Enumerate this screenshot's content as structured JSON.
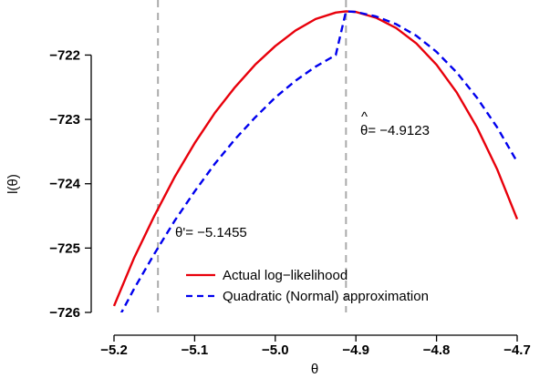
{
  "chart_data": {
    "type": "line",
    "title": "",
    "xlabel": "θ",
    "ylabel": "l(θ)",
    "xlim": [
      -5.2,
      -4.7
    ],
    "ylim": [
      -726,
      -721.3
    ],
    "xticks": [
      {
        "value": -5.2,
        "label": "−5.2"
      },
      {
        "value": -5.1,
        "label": "−5.1"
      },
      {
        "value": -5.0,
        "label": "−5.0"
      },
      {
        "value": -4.9,
        "label": "−4.9"
      },
      {
        "value": -4.8,
        "label": "−4.8"
      },
      {
        "value": -4.7,
        "label": "−4.7"
      }
    ],
    "yticks": [
      {
        "value": -726,
        "label": "−726"
      },
      {
        "value": -725,
        "label": "−725"
      },
      {
        "value": -724,
        "label": "−724"
      },
      {
        "value": -723,
        "label": "−723"
      },
      {
        "value": -722,
        "label": "−722"
      }
    ],
    "series": [
      {
        "name": "Actual log−likelihood",
        "color": "#e8000b",
        "style": "solid",
        "x": [
          -5.2,
          -5.175,
          -5.15,
          -5.125,
          -5.1,
          -5.075,
          -5.05,
          -5.025,
          -5.0,
          -4.975,
          -4.95,
          -4.925,
          -4.9123,
          -4.9,
          -4.875,
          -4.85,
          -4.825,
          -4.8,
          -4.775,
          -4.75,
          -4.725,
          -4.7
        ],
        "y": [
          -725.9,
          -725.15,
          -724.5,
          -723.9,
          -723.37,
          -722.9,
          -722.5,
          -722.15,
          -721.86,
          -721.62,
          -721.44,
          -721.34,
          -721.32,
          -721.33,
          -721.42,
          -721.58,
          -721.82,
          -722.15,
          -722.58,
          -723.12,
          -723.77,
          -724.55
        ]
      },
      {
        "name": "Quadratic (Normal) approximation",
        "color": "#0000ee",
        "style": "dashed",
        "x": [
          -5.2,
          -5.175,
          -5.15,
          -5.125,
          -5.1,
          -5.075,
          -5.05,
          -5.025,
          -5.0,
          -4.975,
          -4.95,
          -4.925,
          -4.9123,
          -4.9,
          -4.875,
          -4.85,
          -4.825,
          -4.8,
          -4.775,
          -4.75,
          -4.725,
          -4.7
        ],
        "y": [
          -726.22,
          -725.63,
          -725.09,
          -724.58,
          -724.12,
          -723.69,
          -723.31,
          -722.97,
          -722.66,
          -722.4,
          -722.18,
          -722.0,
          -721.32,
          -721.33,
          -721.4,
          -721.52,
          -721.7,
          -721.95,
          -722.27,
          -722.66,
          -723.12,
          -723.66
        ]
      }
    ],
    "vlines": [
      {
        "x": -5.1455,
        "color": "#aaaaaa",
        "style": "dashed"
      },
      {
        "x": -4.9123,
        "color": "#aaaaaa",
        "style": "dashed"
      }
    ],
    "annotations": [
      {
        "label": "θ'= −5.1455"
      },
      {
        "label_hat": "^",
        "label": "θ= −4.9123"
      }
    ],
    "legend": {
      "position": "bottom-center",
      "box": false
    }
  }
}
